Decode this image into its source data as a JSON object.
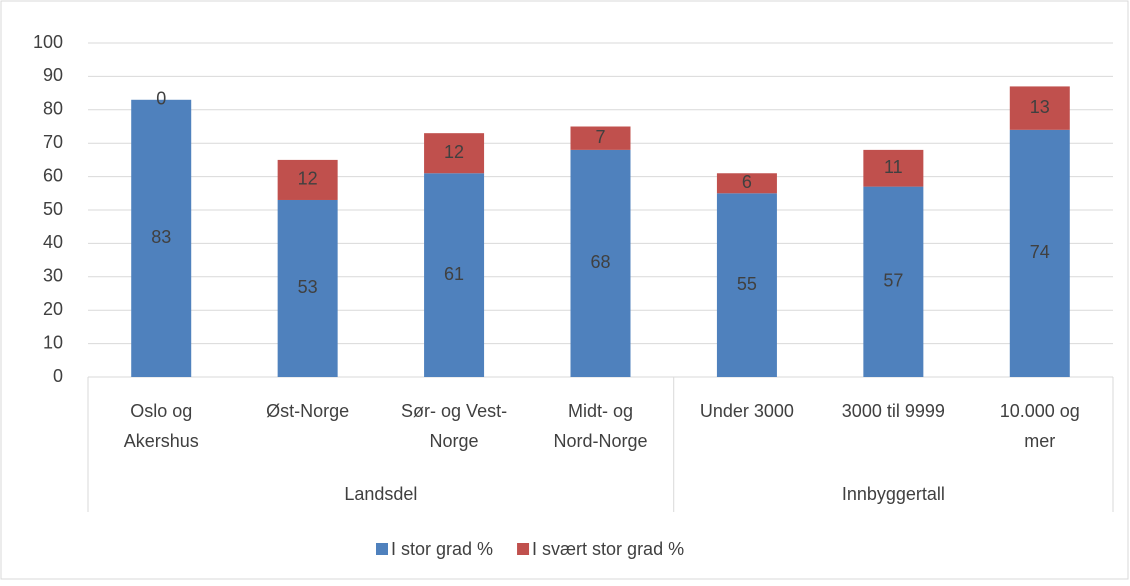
{
  "chart_data": {
    "type": "stacked_bar",
    "categories": [
      "Oslo og\nAkershus",
      "Øst-Norge",
      "Sør- og Vest-\nNorge",
      "Midt- og\nNord-Norge",
      "Under 3000",
      "3000 til 9999",
      "10.000 og\nmer"
    ],
    "groups": [
      {
        "name": "Landsdel",
        "span": 4
      },
      {
        "name": "Innbyggertall",
        "span": 3
      }
    ],
    "series": [
      {
        "name": "I stor grad %",
        "color": "#4f81bd",
        "values": [
          83,
          53,
          61,
          68,
          55,
          57,
          74
        ]
      },
      {
        "name": "I svært stor grad %",
        "color": "#c0504d",
        "values": [
          0,
          12,
          12,
          7,
          6,
          11,
          13
        ]
      }
    ],
    "ylim": [
      0,
      100
    ],
    "yticks": [
      0,
      10,
      20,
      30,
      40,
      50,
      60,
      70,
      80,
      90,
      100
    ],
    "grid": true,
    "legend": "bottom"
  }
}
